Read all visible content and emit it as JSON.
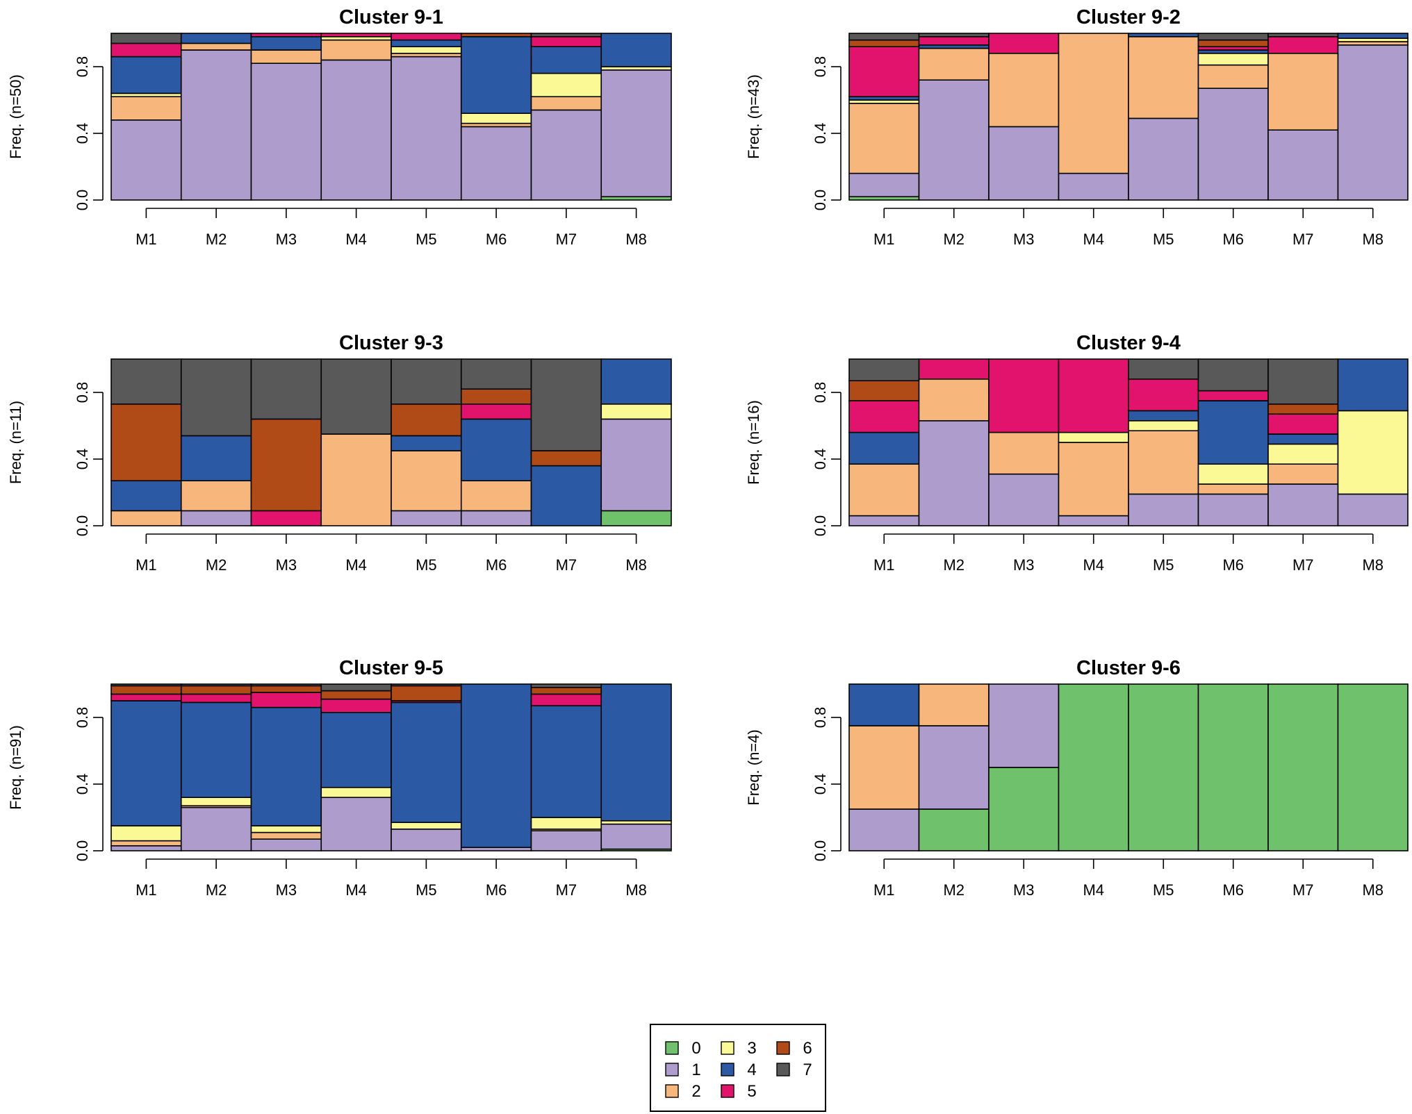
{
  "colors": {
    "0": "#6fc26b",
    "1": "#ae9ccc",
    "2": "#f7b77c",
    "3": "#fbf896",
    "4": "#2c59a4",
    "5": "#e2136c",
    "6": "#b04a17",
    "7": "#595959"
  },
  "chart_data": [
    {
      "type": "bar",
      "stacked": true,
      "title": "Cluster 9-1",
      "ylabel": "Freq. (n=50)",
      "xlabel": "",
      "ylim": [
        0,
        1
      ],
      "yticks": [
        "0.0",
        "0.4",
        "0.8"
      ],
      "categories": [
        "M1",
        "M2",
        "M3",
        "M4",
        "M5",
        "M6",
        "M7",
        "M8"
      ],
      "widths": [
        1,
        1,
        1,
        1,
        1,
        1,
        1,
        1
      ],
      "states": [
        "0",
        "1",
        "2",
        "3",
        "4",
        "5",
        "6",
        "7"
      ],
      "values": [
        [
          0,
          0.48,
          0.14,
          0.02,
          0.22,
          0.08,
          0,
          0.06
        ],
        [
          0,
          0.9,
          0.04,
          0,
          0.06,
          0,
          0,
          0
        ],
        [
          0,
          0.82,
          0.08,
          0,
          0.08,
          0.02,
          0,
          0
        ],
        [
          0,
          0.84,
          0.12,
          0.02,
          0,
          0.02,
          0,
          0
        ],
        [
          0,
          0.86,
          0.02,
          0.04,
          0.04,
          0.04,
          0,
          0
        ],
        [
          0,
          0.44,
          0.02,
          0.06,
          0.46,
          0,
          0.02,
          0
        ],
        [
          0,
          0.54,
          0.08,
          0.14,
          0.16,
          0.06,
          0,
          0.02
        ],
        [
          0.02,
          0.76,
          0,
          0.02,
          0.2,
          0,
          0,
          0
        ]
      ]
    },
    {
      "type": "bar",
      "stacked": true,
      "title": "Cluster 9-2",
      "ylabel": "Freq. (n=43)",
      "xlabel": "",
      "ylim": [
        0,
        1
      ],
      "yticks": [
        "0.0",
        "0.4",
        "0.8"
      ],
      "categories": [
        "M1",
        "M2",
        "M3",
        "M4",
        "M5",
        "M6",
        "M7",
        "M8"
      ],
      "widths": [
        1,
        1,
        1,
        1,
        1,
        1,
        1,
        1
      ],
      "states": [
        "0",
        "1",
        "2",
        "3",
        "4",
        "5",
        "6",
        "7"
      ],
      "values": [
        [
          0.02,
          0.14,
          0.42,
          0.02,
          0.02,
          0.3,
          0.04,
          0.04
        ],
        [
          0,
          0.72,
          0.19,
          0,
          0.02,
          0.05,
          0,
          0.02
        ],
        [
          0,
          0.44,
          0.44,
          0,
          0,
          0.12,
          0,
          0
        ],
        [
          0,
          0.16,
          0.84,
          0,
          0,
          0,
          0,
          0
        ],
        [
          0,
          0.49,
          0.49,
          0,
          0.02,
          0,
          0,
          0
        ],
        [
          0,
          0.67,
          0.14,
          0.07,
          0.02,
          0.02,
          0.04,
          0.04
        ],
        [
          0,
          0.42,
          0.46,
          0,
          0,
          0.1,
          0,
          0.02
        ],
        [
          0,
          0.93,
          0.02,
          0.02,
          0.03,
          0,
          0,
          0
        ]
      ]
    },
    {
      "type": "bar",
      "stacked": true,
      "title": "Cluster 9-3",
      "ylabel": "Freq. (n=11)",
      "xlabel": "",
      "ylim": [
        0,
        1
      ],
      "yticks": [
        "0.0",
        "0.4",
        "0.8"
      ],
      "categories": [
        "M1",
        "M2",
        "M3",
        "M4",
        "M5",
        "M6",
        "M7",
        "M8"
      ],
      "widths": [
        1,
        1,
        1,
        1,
        1,
        1,
        1,
        1
      ],
      "states": [
        "0",
        "1",
        "2",
        "3",
        "4",
        "5",
        "6",
        "7"
      ],
      "values": [
        [
          0,
          0,
          0.09,
          0,
          0.18,
          0,
          0.46,
          0.27
        ],
        [
          0,
          0.09,
          0.18,
          0,
          0.27,
          0,
          0,
          0.46
        ],
        [
          0,
          0,
          0,
          0,
          0,
          0.09,
          0.55,
          0.36
        ],
        [
          0,
          0,
          0.55,
          0,
          0,
          0,
          0,
          0.45
        ],
        [
          0,
          0.09,
          0.36,
          0,
          0.09,
          0,
          0.19,
          0.27
        ],
        [
          0,
          0.09,
          0.18,
          0,
          0.37,
          0.09,
          0.09,
          0.18
        ],
        [
          0,
          0,
          0,
          0,
          0.36,
          0,
          0.09,
          0.55
        ],
        [
          0.09,
          0.55,
          0,
          0.09,
          0.27,
          0,
          0,
          0
        ]
      ]
    },
    {
      "type": "bar",
      "stacked": true,
      "title": "Cluster 9-4",
      "ylabel": "Freq. (n=16)",
      "xlabel": "",
      "ylim": [
        0,
        1
      ],
      "yticks": [
        "0.0",
        "0.4",
        "0.8"
      ],
      "categories": [
        "M1",
        "M2",
        "M3",
        "M4",
        "M5",
        "M6",
        "M7",
        "M8"
      ],
      "widths": [
        1,
        1,
        1,
        1,
        1,
        1,
        1,
        1
      ],
      "states": [
        "0",
        "1",
        "2",
        "3",
        "4",
        "5",
        "6",
        "7"
      ],
      "values": [
        [
          0,
          0.06,
          0.31,
          0,
          0.19,
          0.19,
          0.12,
          0.13
        ],
        [
          0,
          0.63,
          0.25,
          0,
          0,
          0.12,
          0,
          0
        ],
        [
          0,
          0.31,
          0.25,
          0,
          0,
          0.44,
          0,
          0
        ],
        [
          0,
          0.06,
          0.44,
          0.06,
          0,
          0.44,
          0,
          0
        ],
        [
          0,
          0.19,
          0.38,
          0.06,
          0.06,
          0.19,
          0,
          0.12
        ],
        [
          0,
          0.19,
          0.06,
          0.12,
          0.38,
          0.06,
          0,
          0.19
        ],
        [
          0,
          0.25,
          0.12,
          0.12,
          0.06,
          0.12,
          0.06,
          0.27
        ],
        [
          0,
          0.19,
          0,
          0.5,
          0.31,
          0,
          0,
          0
        ]
      ]
    },
    {
      "type": "bar",
      "stacked": true,
      "title": "Cluster 9-5",
      "ylabel": "Freq. (n=91)",
      "xlabel": "",
      "ylim": [
        0,
        1
      ],
      "yticks": [
        "0.0",
        "0.4",
        "0.8"
      ],
      "categories": [
        "M1",
        "M2",
        "M3",
        "M4",
        "M5",
        "M6",
        "M7",
        "M8"
      ],
      "widths": [
        1,
        1,
        1,
        1,
        1,
        1,
        1,
        1
      ],
      "states": [
        "0",
        "1",
        "2",
        "3",
        "4",
        "5",
        "6",
        "7"
      ],
      "values": [
        [
          0,
          0.03,
          0.03,
          0.09,
          0.75,
          0.04,
          0.05,
          0.01
        ],
        [
          0,
          0.26,
          0.01,
          0.05,
          0.57,
          0.05,
          0.05,
          0.01
        ],
        [
          0,
          0.07,
          0.04,
          0.04,
          0.71,
          0.09,
          0.04,
          0.01
        ],
        [
          0,
          0.32,
          0,
          0.06,
          0.45,
          0.08,
          0.05,
          0.04
        ],
        [
          0,
          0.13,
          0,
          0.04,
          0.72,
          0.01,
          0.09,
          0.01
        ],
        [
          0,
          0.02,
          0,
          0,
          0.98,
          0,
          0,
          0
        ],
        [
          0,
          0.12,
          0.01,
          0.07,
          0.67,
          0.07,
          0.04,
          0.02
        ],
        [
          0.01,
          0.15,
          0,
          0.02,
          0.82,
          0,
          0,
          0
        ]
      ]
    },
    {
      "type": "bar",
      "stacked": true,
      "title": "Cluster 9-6",
      "ylabel": "Freq. (n=4)",
      "xlabel": "",
      "ylim": [
        0,
        1
      ],
      "yticks": [
        "0.0",
        "0.4",
        "0.8"
      ],
      "categories": [
        "M1",
        "M2",
        "M3",
        "M4",
        "M5",
        "M6",
        "M7",
        "M8"
      ],
      "widths": [
        1,
        1,
        1,
        1,
        1,
        1,
        1,
        1
      ],
      "states": [
        "0",
        "1",
        "2",
        "3",
        "4",
        "5",
        "6",
        "7"
      ],
      "values": [
        [
          0,
          0.25,
          0.5,
          0,
          0.25,
          0,
          0,
          0
        ],
        [
          0.25,
          0.5,
          0.25,
          0,
          0,
          0,
          0,
          0
        ],
        [
          0.5,
          0.5,
          0,
          0,
          0,
          0,
          0,
          0
        ],
        [
          1,
          0,
          0,
          0,
          0,
          0,
          0,
          0
        ],
        [
          1,
          0,
          0,
          0,
          0,
          0,
          0,
          0
        ],
        [
          1,
          0,
          0,
          0,
          0,
          0,
          0,
          0
        ],
        [
          1,
          0,
          0,
          0,
          0,
          0,
          0,
          0
        ],
        [
          1,
          0,
          0,
          0,
          0,
          0,
          0,
          0
        ]
      ]
    }
  ],
  "legend": {
    "position": "bottom-center",
    "entries": [
      {
        "label": "0",
        "state": "0"
      },
      {
        "label": "1",
        "state": "1"
      },
      {
        "label": "2",
        "state": "2"
      },
      {
        "label": "3",
        "state": "3"
      },
      {
        "label": "4",
        "state": "4"
      },
      {
        "label": "5",
        "state": "5"
      },
      {
        "label": "6",
        "state": "6"
      },
      {
        "label": "7",
        "state": "7"
      }
    ]
  }
}
